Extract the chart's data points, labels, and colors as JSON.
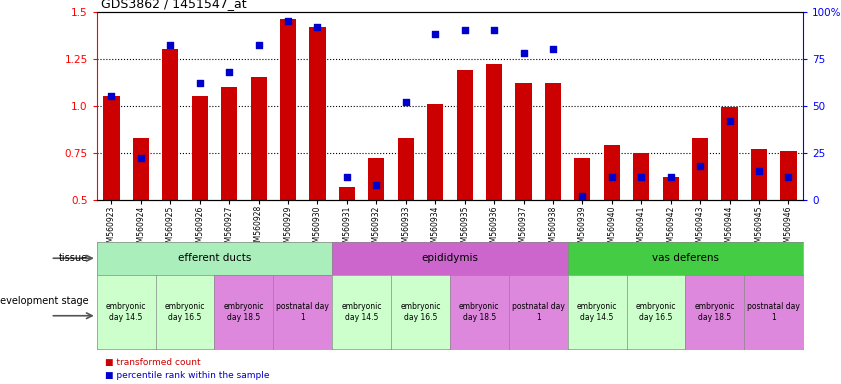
{
  "title": "GDS3862 / 1451547_at",
  "samples": [
    "GSM560923",
    "GSM560924",
    "GSM560925",
    "GSM560926",
    "GSM560927",
    "GSM560928",
    "GSM560929",
    "GSM560930",
    "GSM560931",
    "GSM560932",
    "GSM560933",
    "GSM560934",
    "GSM560935",
    "GSM560936",
    "GSM560937",
    "GSM560938",
    "GSM560939",
    "GSM560940",
    "GSM560941",
    "GSM560942",
    "GSM560943",
    "GSM560944",
    "GSM560945",
    "GSM560946"
  ],
  "red_values": [
    1.05,
    0.83,
    1.3,
    1.05,
    1.1,
    1.15,
    1.46,
    1.42,
    0.57,
    0.72,
    0.83,
    1.01,
    1.19,
    1.22,
    1.12,
    1.12,
    0.72,
    0.79,
    0.75,
    0.62,
    0.83,
    0.99,
    0.77,
    0.76
  ],
  "blue_values": [
    55,
    22,
    82,
    62,
    68,
    82,
    95,
    92,
    12,
    8,
    52,
    88,
    90,
    90,
    78,
    80,
    2,
    12,
    12,
    12,
    18,
    42,
    15,
    12
  ],
  "ylim_left": [
    0.5,
    1.5
  ],
  "ylim_right": [
    0,
    100
  ],
  "yticks_left": [
    0.5,
    0.75,
    1.0,
    1.25,
    1.5
  ],
  "yticks_right": [
    0,
    25,
    50,
    75,
    100
  ],
  "ytick_labels_right": [
    "0",
    "25",
    "50",
    "75",
    "100%"
  ],
  "hlines": [
    0.75,
    1.0,
    1.25
  ],
  "bar_color": "#cc0000",
  "dot_color": "#0000cc",
  "bar_bottom": 0.5,
  "tissue_groups": [
    {
      "label": "efferent ducts",
      "start": 0,
      "end": 8,
      "color": "#aaeebb"
    },
    {
      "label": "epididymis",
      "start": 8,
      "end": 16,
      "color": "#cc66cc"
    },
    {
      "label": "vas deferens",
      "start": 16,
      "end": 24,
      "color": "#44cc44"
    }
  ],
  "dev_stage_groups": [
    {
      "label": "embryonic\nday 14.5",
      "start": 0,
      "end": 2,
      "color": "#ccffcc"
    },
    {
      "label": "embryonic\nday 16.5",
      "start": 2,
      "end": 4,
      "color": "#ccffcc"
    },
    {
      "label": "embryonic\nday 18.5",
      "start": 4,
      "end": 6,
      "color": "#dd88dd"
    },
    {
      "label": "postnatal day\n1",
      "start": 6,
      "end": 8,
      "color": "#dd88dd"
    },
    {
      "label": "embryonic\nday 14.5",
      "start": 8,
      "end": 10,
      "color": "#ccffcc"
    },
    {
      "label": "embryonic\nday 16.5",
      "start": 10,
      "end": 12,
      "color": "#ccffcc"
    },
    {
      "label": "embryonic\nday 18.5",
      "start": 12,
      "end": 14,
      "color": "#dd88dd"
    },
    {
      "label": "postnatal day\n1",
      "start": 14,
      "end": 16,
      "color": "#dd88dd"
    },
    {
      "label": "embryonic\nday 14.5",
      "start": 16,
      "end": 18,
      "color": "#ccffcc"
    },
    {
      "label": "embryonic\nday 16.5",
      "start": 18,
      "end": 20,
      "color": "#ccffcc"
    },
    {
      "label": "embryonic\nday 18.5",
      "start": 20,
      "end": 22,
      "color": "#dd88dd"
    },
    {
      "label": "postnatal day\n1",
      "start": 22,
      "end": 24,
      "color": "#dd88dd"
    }
  ],
  "legend_items": [
    {
      "label": "transformed count",
      "color": "#cc0000"
    },
    {
      "label": "percentile rank within the sample",
      "color": "#0000cc"
    }
  ],
  "background_color": "#ffffff"
}
